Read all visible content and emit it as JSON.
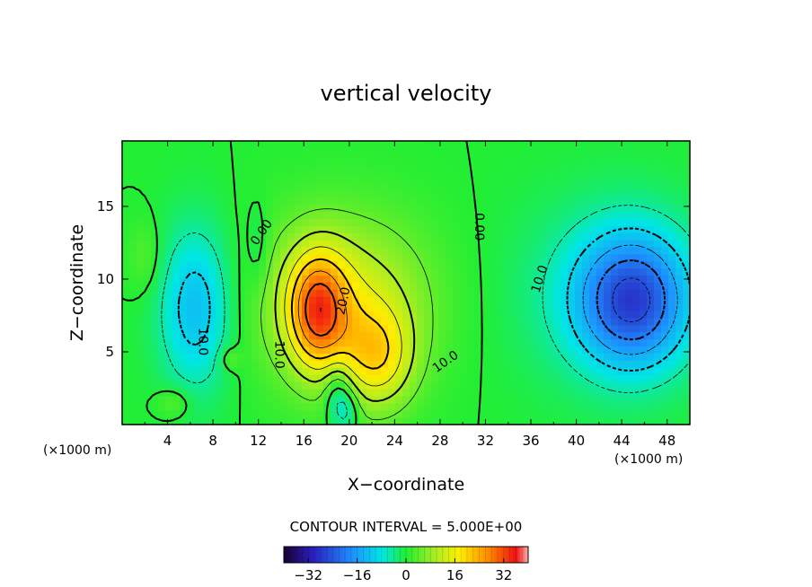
{
  "chart_data": {
    "type": "heatmap",
    "title": "vertical velocity",
    "xlabel": "X−coordinate",
    "ylabel": "Z−coordinate",
    "x_unit": "(×1000 m)",
    "x_unit_right": "(×1000 m)",
    "xlim": [
      0,
      50
    ],
    "ylim": [
      0,
      19.5
    ],
    "x_ticks": [
      4,
      8,
      12,
      16,
      20,
      24,
      28,
      32,
      36,
      40,
      44,
      48
    ],
    "y_ticks": [
      5,
      10,
      15
    ],
    "contour_interval_text": "CONTOUR INTERVAL = 5.000E+00",
    "contour_interval": 5.0,
    "colorbar": {
      "range": [
        -40,
        40
      ],
      "ticks": [
        -32,
        -16,
        0,
        16,
        32
      ],
      "tick_labels": [
        "−32",
        "−16",
        "0",
        "16",
        "32"
      ]
    },
    "contour_labels": [
      {
        "text": "0.00",
        "x": 12.3,
        "z": 13.2,
        "angle": -55
      },
      {
        "text": "0.00",
        "x": 31.4,
        "z": 13.6,
        "angle": 90
      },
      {
        "text": "10.0",
        "x": 13.8,
        "z": 4.8,
        "angle": 90
      },
      {
        "text": "20.0",
        "x": 19.5,
        "z": 8.5,
        "angle": -78
      },
      {
        "text": "10.0",
        "x": 28.5,
        "z": 4.3,
        "angle": -35
      },
      {
        "text": "10.0",
        "x": 7.1,
        "z": 5.7,
        "angle": 90
      },
      {
        "text": "10.0",
        "x": 36.8,
        "z": 10.0,
        "angle": -72
      }
    ],
    "features": [
      {
        "kind": "updraft",
        "x": 17.2,
        "z": 7.8,
        "peak": 38
      },
      {
        "kind": "updraft",
        "x": 22.5,
        "z": 4.5,
        "peak": 28
      },
      {
        "kind": "downdraft",
        "x": 45.0,
        "z": 8.5,
        "peak": -24
      },
      {
        "kind": "downdraft",
        "x": 6.5,
        "z": 8.0,
        "peak": -14
      }
    ]
  }
}
